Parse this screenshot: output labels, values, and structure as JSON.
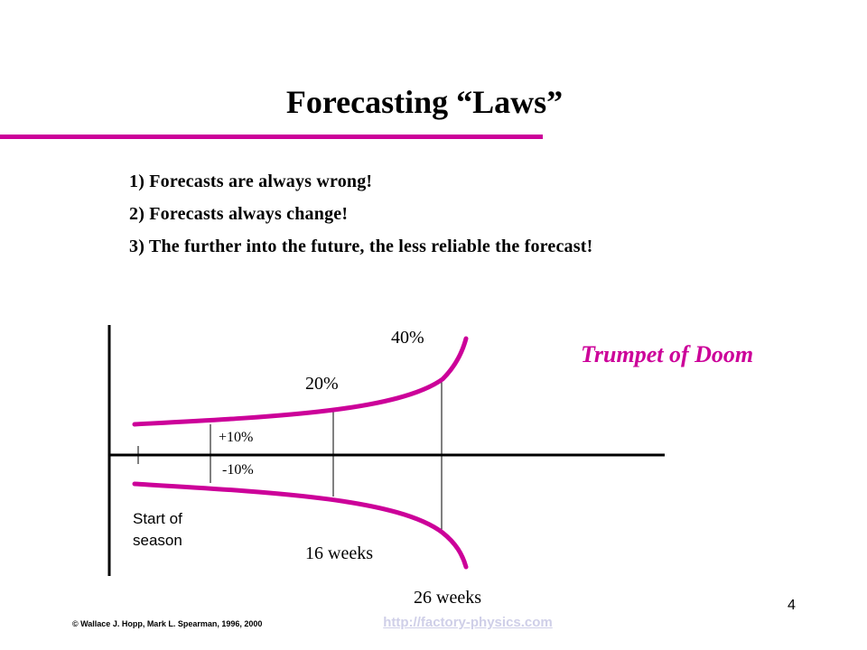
{
  "slide": {
    "title": "Forecasting “Laws”",
    "laws": [
      "1) Forecasts are always wrong!",
      "2) Forecasts always change!",
      "3) The further into the future, the less reliable the forecast!"
    ],
    "page_number": "4"
  },
  "diagram": {
    "labels": {
      "plus_ten": "+10%",
      "minus_ten": "-10%",
      "twenty": "20%",
      "forty": "40%",
      "start": [
        "Start of",
        "season"
      ],
      "sixteen_weeks": "16 weeks",
      "twentysix_weeks": "26 weeks"
    },
    "caption": "Trumpet of Doom",
    "curve_color": "#cc0099"
  },
  "footer": {
    "copyright": "© Wallace J. Hopp, Mark L. Spearman, 1996, 2000",
    "link": "http://factory-physics.com"
  }
}
